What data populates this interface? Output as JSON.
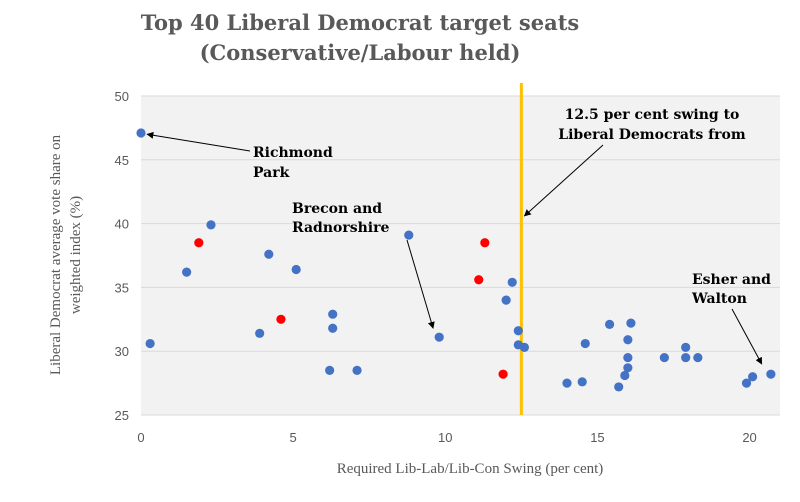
{
  "chart_data": {
    "type": "scatter",
    "title_lines": [
      "Top 40 Liberal Democrat target seats",
      "(Conservative/Labour held)"
    ],
    "xlabel": "Required Lib-Lab/Lib-Con Swing (per cent)",
    "ylabel_lines": [
      "Liberal Democrat average vote share on",
      "weighted index (%)"
    ],
    "xlim": [
      0,
      21
    ],
    "ylim": [
      25,
      50
    ],
    "x_ticks": [
      0,
      5,
      10,
      15,
      20
    ],
    "y_ticks": [
      25,
      30,
      35,
      40,
      45,
      50
    ],
    "grid": "horizontal",
    "background": "#f2f2f2",
    "series": [
      {
        "color": "#4472c4",
        "points": [
          [
            0.0,
            47.1
          ],
          [
            0.3,
            30.6
          ],
          [
            1.5,
            36.2
          ],
          [
            2.3,
            39.9
          ],
          [
            3.9,
            31.4
          ],
          [
            4.2,
            37.6
          ],
          [
            5.1,
            36.4
          ],
          [
            6.2,
            28.5
          ],
          [
            6.3,
            32.9
          ],
          [
            6.3,
            31.8
          ],
          [
            7.1,
            28.5
          ],
          [
            8.8,
            39.1
          ],
          [
            9.8,
            31.1
          ],
          [
            12.0,
            34.0
          ],
          [
            12.2,
            35.4
          ],
          [
            12.4,
            31.6
          ],
          [
            12.4,
            30.5
          ],
          [
            12.6,
            30.3
          ],
          [
            14.0,
            27.5
          ],
          [
            14.5,
            27.6
          ],
          [
            14.6,
            30.6
          ],
          [
            15.4,
            32.1
          ],
          [
            15.7,
            27.2
          ],
          [
            15.9,
            28.1
          ],
          [
            16.0,
            29.5
          ],
          [
            16.0,
            28.7
          ],
          [
            16.0,
            30.9
          ],
          [
            16.1,
            32.2
          ],
          [
            17.2,
            29.5
          ],
          [
            17.9,
            30.3
          ],
          [
            17.9,
            29.5
          ],
          [
            18.3,
            29.5
          ],
          [
            19.9,
            27.5
          ],
          [
            20.1,
            28.0
          ],
          [
            20.7,
            28.2
          ]
        ]
      },
      {
        "color": "#ff0000",
        "points": [
          [
            1.9,
            38.5
          ],
          [
            4.6,
            32.5
          ],
          [
            11.1,
            35.6
          ],
          [
            11.3,
            38.5
          ],
          [
            11.9,
            28.2
          ]
        ]
      }
    ],
    "reference_line": {
      "x": 12.5,
      "color": "#ffc000"
    },
    "annotations": [
      {
        "lines": [
          "Richmond",
          "Park"
        ],
        "arrow_to": [
          0.2,
          47.0
        ]
      },
      {
        "lines": [
          "Brecon and",
          "Radnorshire"
        ],
        "arrow_to": [
          9.6,
          31.8
        ]
      },
      {
        "lines": [
          "12.5 per cent swing to",
          "Liberal Democrats from"
        ],
        "arrow_to": [
          12.6,
          40.6
        ]
      },
      {
        "lines": [
          "Esher and",
          "Walton"
        ],
        "arrow_to": [
          20.4,
          29.0
        ]
      }
    ]
  }
}
